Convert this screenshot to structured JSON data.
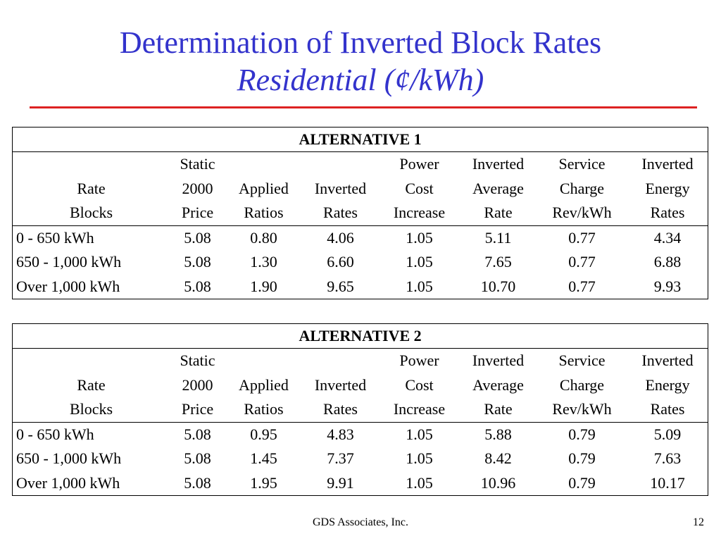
{
  "title": "Determination of Inverted Block Rates",
  "subtitle": "Residential (¢/kWh)",
  "header_rows": [
    [
      "",
      "Static",
      "",
      "",
      "Power",
      "Inverted",
      "Service",
      "Inverted"
    ],
    [
      "Rate",
      "2000",
      "Applied",
      "Inverted",
      "Cost",
      "Average",
      "Charge",
      "Energy"
    ],
    [
      "Blocks",
      "Price",
      "Ratios",
      "Rates",
      "Increase",
      "Rate",
      "Rev/kWh",
      "Rates"
    ]
  ],
  "alternatives": [
    {
      "title": "ALTERNATIVE 1",
      "rows": [
        [
          "0 - 650 kWh",
          "5.08",
          "0.80",
          "4.06",
          "1.05",
          "5.11",
          "0.77",
          "4.34"
        ],
        [
          "650 - 1,000 kWh",
          "5.08",
          "1.30",
          "6.60",
          "1.05",
          "7.65",
          "0.77",
          "6.88"
        ],
        [
          "Over 1,000 kWh",
          "5.08",
          "1.90",
          "9.65",
          "1.05",
          "10.70",
          "0.77",
          "9.93"
        ]
      ]
    },
    {
      "title": "ALTERNATIVE 2",
      "rows": [
        [
          "0 - 650 kWh",
          "5.08",
          "0.95",
          "4.83",
          "1.05",
          "5.88",
          "0.79",
          "5.09"
        ],
        [
          "650 - 1,000 kWh",
          "5.08",
          "1.45",
          "7.37",
          "1.05",
          "8.42",
          "0.79",
          "7.63"
        ],
        [
          "Over 1,000 kWh",
          "5.08",
          "1.95",
          "9.91",
          "1.05",
          "10.96",
          "0.79",
          "10.17"
        ]
      ]
    }
  ],
  "footer": {
    "company": "GDS Associates, Inc.",
    "page_number": "12"
  },
  "colors": {
    "title": "#3333cc",
    "rule": "#dd2222"
  }
}
